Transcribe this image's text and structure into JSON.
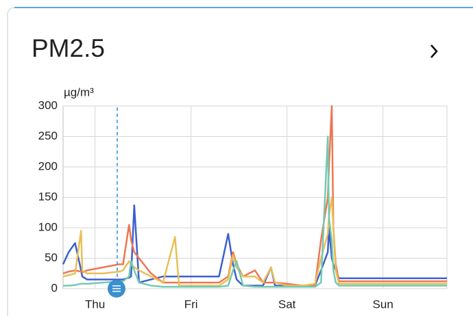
{
  "chart_data": {
    "type": "line",
    "title": "PM2.5",
    "y_label": "µg/m³",
    "x": [
      16,
      17.4,
      19,
      20.5,
      20.8,
      22,
      26,
      30,
      31,
      32.5,
      33,
      33.8,
      35,
      38,
      41,
      44,
      45,
      50,
      55,
      57.3,
      58.5,
      59.4,
      61,
      64,
      66,
      68,
      69,
      72,
      76,
      79,
      80.5,
      82.2,
      82.5,
      83.2,
      83.6,
      84.2,
      85,
      100,
      112
    ],
    "xlim": [
      16,
      112
    ],
    "xticks": [
      {
        "value": 24,
        "label": "Thu"
      },
      {
        "value": 48,
        "label": "Fri"
      },
      {
        "value": 72,
        "label": "Sat"
      },
      {
        "value": 96,
        "label": "Sun"
      }
    ],
    "ylim": [
      0,
      300
    ],
    "yticks": [
      0,
      50,
      100,
      150,
      200,
      250,
      300
    ],
    "grid": true,
    "series": [
      {
        "color": "#3d5fcf",
        "values": [
          40,
          60,
          75,
          30,
          20,
          15,
          15,
          15,
          15,
          18,
          20,
          137,
          10,
          15,
          20,
          20,
          20,
          20,
          20,
          90,
          40,
          15,
          5,
          5,
          5,
          35,
          5,
          5,
          5,
          5,
          30,
          60,
          100,
          50,
          40,
          30,
          17,
          17,
          17
        ]
      },
      {
        "color": "#ee7652",
        "values": [
          25,
          28,
          30,
          28,
          27,
          30,
          35,
          40,
          40,
          105,
          80,
          60,
          50,
          25,
          10,
          10,
          10,
          10,
          10,
          20,
          60,
          40,
          20,
          30,
          10,
          10,
          10,
          8,
          5,
          5,
          80,
          150,
          200,
          300,
          100,
          40,
          12,
          12,
          12
        ]
      },
      {
        "color": "#e9bf55",
        "values": [
          20,
          22,
          25,
          95,
          30,
          25,
          25,
          28,
          30,
          45,
          40,
          35,
          30,
          20,
          10,
          85,
          5,
          5,
          5,
          15,
          55,
          35,
          20,
          20,
          10,
          35,
          10,
          5,
          5,
          8,
          50,
          90,
          120,
          150,
          100,
          30,
          8,
          8,
          8
        ]
      },
      {
        "color": "#74c9b2",
        "values": [
          5,
          5,
          6,
          8,
          8,
          8,
          10,
          12,
          12,
          20,
          45,
          30,
          10,
          5,
          3,
          3,
          3,
          3,
          3,
          5,
          30,
          45,
          5,
          3,
          3,
          3,
          3,
          3,
          3,
          3,
          10,
          250,
          115,
          80,
          30,
          10,
          5,
          5,
          5
        ]
      }
    ]
  }
}
